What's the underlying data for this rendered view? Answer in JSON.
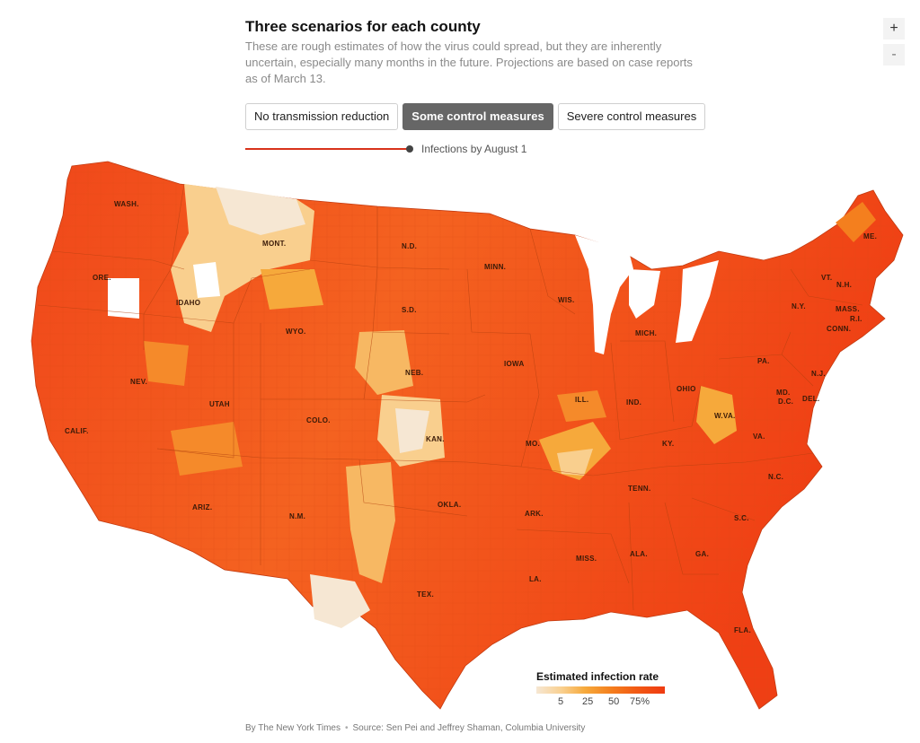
{
  "header": {
    "title": "Three scenarios for each county",
    "subtitle": "These are rough estimates of how the virus could spread, but they are inherently uncertain, especially many months in the future. Projections are based on case reports as of March 13."
  },
  "zoom": {
    "in_label": "+",
    "out_label": "-"
  },
  "scenarios": [
    {
      "label": "No transmission reduction",
      "active": false
    },
    {
      "label": "Some control measures",
      "active": true
    },
    {
      "label": "Severe control measures",
      "active": false
    }
  ],
  "timeline": {
    "label": "Infections by August 1"
  },
  "map": {
    "states": [
      "WASH.",
      "ORE.",
      "CALIF.",
      "NEV.",
      "IDAHO",
      "MONT.",
      "WYO.",
      "UTAH",
      "ARIZ.",
      "COLO.",
      "N.M.",
      "N.D.",
      "S.D.",
      "NEB.",
      "KAN.",
      "OKLA.",
      "TEX.",
      "MINN.",
      "IOWA",
      "MO.",
      "ARK.",
      "LA.",
      "WIS.",
      "ILL.",
      "MISS.",
      "MICH.",
      "IND.",
      "KY.",
      "TENN.",
      "ALA.",
      "GA.",
      "FLA.",
      "OHIO",
      "W.VA.",
      "VA.",
      "N.C.",
      "S.C.",
      "PA.",
      "N.Y.",
      "VT.",
      "N.H.",
      "ME.",
      "MASS.",
      "R.I.",
      "CONN.",
      "N.J.",
      "MD.",
      "D.C.",
      "DEL."
    ],
    "colors": {
      "high": "#ef3b12",
      "mid": "#f47f1e",
      "low": "#f9cf8e",
      "lowest": "#f6e7d3",
      "border": "#c23a10"
    }
  },
  "legend": {
    "title": "Estimated infection rate",
    "ticks": [
      "5",
      "25",
      "50",
      "75%"
    ]
  },
  "credit": {
    "byline": "By The New York Times",
    "source": "Source: Sen Pei and Jeffrey Shaman, Columbia University"
  }
}
